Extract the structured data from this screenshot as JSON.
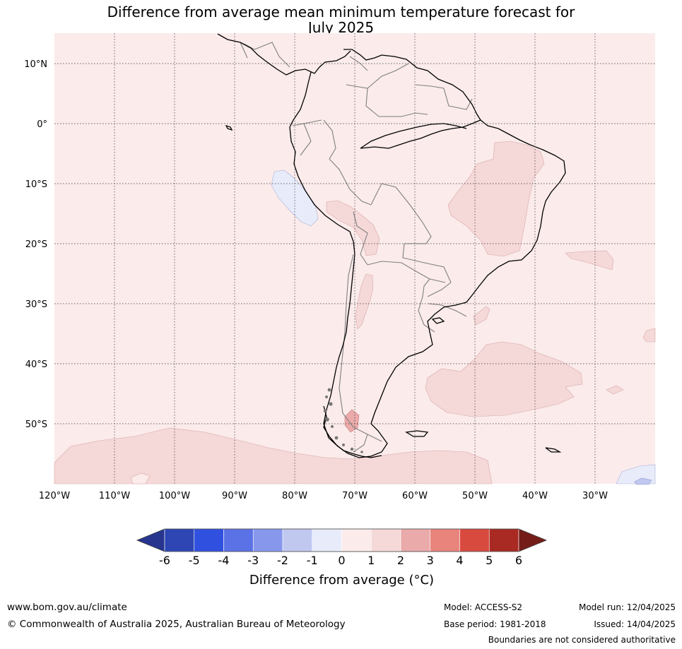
{
  "title": {
    "line1": "Difference from average mean minimum temperature forecast for",
    "line2": "July 2025"
  },
  "map": {
    "lat_labels": [
      "10°N",
      "0°",
      "10°S",
      "20°S",
      "30°S",
      "40°S",
      "50°S"
    ],
    "lon_labels": [
      "120°W",
      "110°W",
      "100°W",
      "90°W",
      "80°W",
      "70°W",
      "60°W",
      "50°W",
      "40°W",
      "30°W"
    ],
    "lat_values": [
      10,
      0,
      -10,
      -20,
      -30,
      -40,
      -50
    ],
    "lon_values": [
      -120,
      -110,
      -100,
      -90,
      -80,
      -70,
      -60,
      -50,
      -40,
      -30
    ],
    "lat_range": [
      -60,
      15
    ],
    "lon_range": [
      -120,
      -20
    ],
    "graticule": "dotted",
    "colors": {
      "ocean_base": "#fbebeb",
      "band_1_2": "#f5d8d8",
      "band_2_3": "#ebaaaa",
      "band_m1_0": "#e8ecfa",
      "band_m2_m1": "#c0c8f0",
      "coastline": "#000000",
      "borders": "#808080"
    }
  },
  "colorbar": {
    "label": "Difference from average (°C)",
    "label_main": "Difference from average (",
    "label_unit": "°C)",
    "ticks": [
      "-6",
      "-5",
      "-4",
      "-3",
      "-2",
      "-1",
      "0",
      "1",
      "2",
      "3",
      "4",
      "5",
      "6"
    ],
    "colors": [
      "#27358f",
      "#2d46b4",
      "#3050e0",
      "#5b72e6",
      "#8697ec",
      "#c0c8f0",
      "#e8ecfa",
      "#fbebeb",
      "#f5d8d8",
      "#ebaaaa",
      "#e8847c",
      "#d94a3e",
      "#a82a22",
      "#741c18"
    ]
  },
  "footer": {
    "website": "www.bom.gov.au/climate",
    "copyright": "© Commonwealth of Australia 2025, Australian Bureau of Meteorology",
    "model": "Model: ACCESS-S2",
    "base_period": "Base period: 1981-2018",
    "model_run": "Model run: 12/04/2025",
    "issued": "Issued: 14/04/2025",
    "disclaimer": "Boundaries are not considered authoritative"
  }
}
